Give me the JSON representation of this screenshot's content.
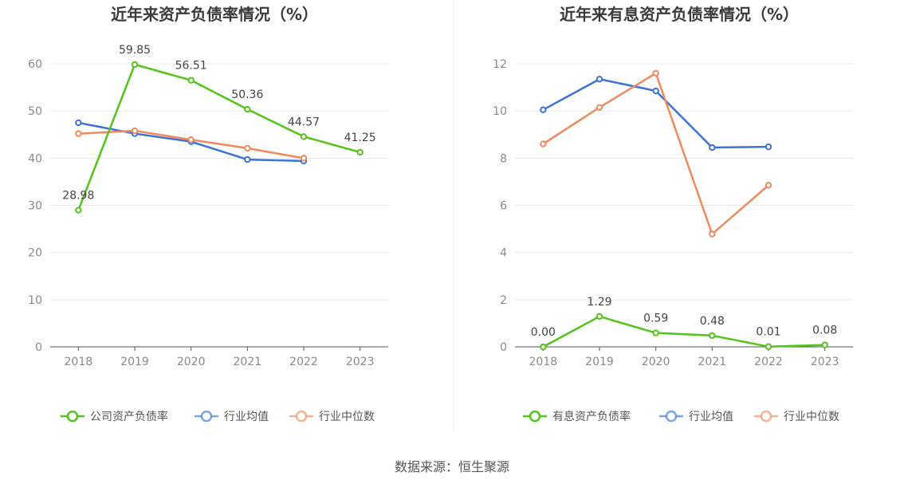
{
  "source": "数据来源：恒生聚源",
  "colors": {
    "company": "#52c41a",
    "avg": "#3b73d9",
    "median": "#f08a5d",
    "grid": "#e6e8ef",
    "axis": "#555555",
    "divider": "#eeeeee"
  },
  "chart_data": [
    {
      "type": "line",
      "title": "近年来资产负债率情况（%）",
      "categories": [
        "2018",
        "2019",
        "2020",
        "2021",
        "2022",
        "2023"
      ],
      "ylim": [
        0,
        60
      ],
      "yticks": [
        0,
        10,
        20,
        30,
        40,
        50,
        60
      ],
      "grid": true,
      "legend_position": "bottom",
      "series": [
        {
          "name": "公司资产负债率",
          "key": "company",
          "values": [
            28.98,
            59.85,
            56.51,
            50.36,
            44.57,
            41.25
          ],
          "labels": [
            "28.98",
            "59.85",
            "56.51",
            "50.36",
            "44.57",
            "41.25"
          ]
        },
        {
          "name": "行业均值",
          "key": "avg",
          "values": [
            47.5,
            45.2,
            43.5,
            39.7,
            39.4,
            null
          ]
        },
        {
          "name": "行业中位数",
          "key": "median",
          "values": [
            45.2,
            45.8,
            43.9,
            42.1,
            40.0,
            null
          ]
        }
      ]
    },
    {
      "type": "line",
      "title": "近年来有息资产负债率情况（%）",
      "categories": [
        "2018",
        "2019",
        "2020",
        "2021",
        "2022",
        "2023"
      ],
      "ylim": [
        0,
        12
      ],
      "yticks": [
        0,
        2,
        4,
        6,
        8,
        10,
        12
      ],
      "grid": true,
      "legend_position": "bottom",
      "series": [
        {
          "name": "有息资产负债率",
          "key": "company",
          "values": [
            0.0,
            1.29,
            0.59,
            0.48,
            0.01,
            0.08
          ],
          "labels": [
            "0.00",
            "1.29",
            "0.59",
            "0.48",
            "0.01",
            "0.08"
          ]
        },
        {
          "name": "行业均值",
          "key": "avg",
          "values": [
            10.05,
            11.35,
            10.85,
            8.45,
            8.48,
            null
          ]
        },
        {
          "name": "行业中位数",
          "key": "median",
          "values": [
            8.6,
            10.15,
            11.6,
            4.78,
            6.85,
            null
          ]
        }
      ]
    }
  ]
}
